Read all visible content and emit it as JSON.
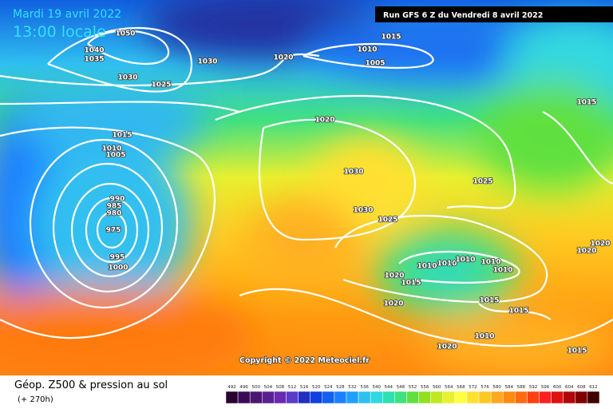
{
  "header": {
    "date": "Mardi 19 avril 2022",
    "time": "13:00 locale",
    "run": "Run GFS 6 Z du Vendredi 8 avril 2022"
  },
  "map": {
    "isobar_labels": [
      "1050",
      "1040",
      "1035",
      "1030",
      "1025",
      "1030",
      "1020",
      "1015",
      "1010",
      "1005",
      "1015",
      "1020",
      "1015",
      "1010",
      "1005",
      "1030",
      "1025",
      "990",
      "985",
      "980",
      "975",
      "995",
      "1000",
      "1030",
      "1025",
      "1020",
      "1020",
      "1010",
      "1010",
      "1010",
      "1010",
      "1010",
      "1020",
      "1015",
      "1020",
      "1015",
      "1015",
      "1010",
      "1020",
      "1015"
    ],
    "copyright": "Copyright © 2022 Meteociel.fr"
  },
  "legend": {
    "title": "Géop. Z500 & pression au sol",
    "lead": "(+ 270h)",
    "levels": [
      492,
      496,
      500,
      504,
      508,
      512,
      516,
      520,
      524,
      528,
      532,
      536,
      540,
      544,
      548,
      552,
      556,
      560,
      564,
      568,
      572,
      576,
      580,
      584,
      588,
      592,
      596,
      600,
      604,
      608,
      612
    ],
    "colors": [
      "#2a0030",
      "#3b0a55",
      "#4b1670",
      "#5a2090",
      "#6a2ab0",
      "#5a3ac8",
      "#2030c0",
      "#1040e0",
      "#1060f0",
      "#1a80ff",
      "#20a0ff",
      "#30c0f0",
      "#30d8e0",
      "#30e0b0",
      "#40e080",
      "#60e040",
      "#90e020",
      "#c0e820",
      "#e8f030",
      "#ffff40",
      "#ffe030",
      "#ffc820",
      "#ffa820",
      "#ff8a10",
      "#ff6a10",
      "#ff4010",
      "#ff2020",
      "#e01010",
      "#b00808",
      "#800000",
      "#400000"
    ]
  }
}
